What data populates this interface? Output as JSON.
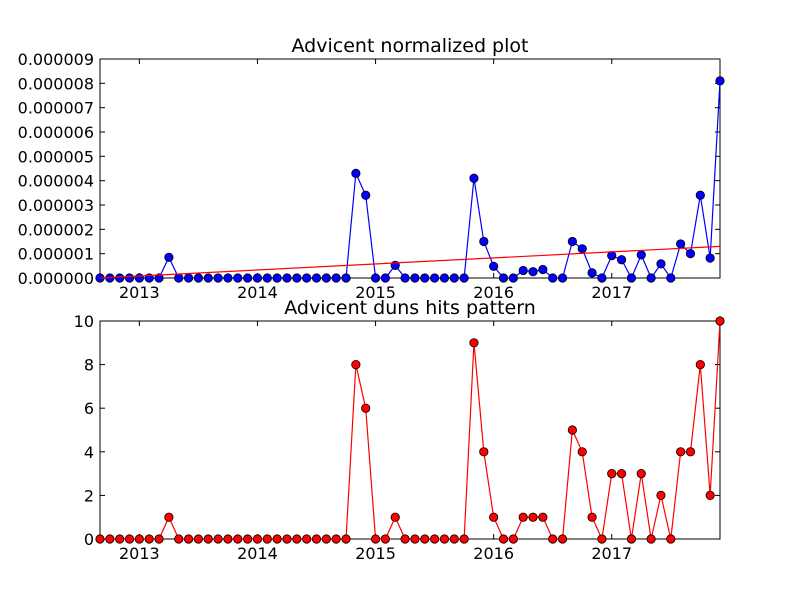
{
  "chart_data": [
    {
      "type": "line",
      "title": "Advicent normalized plot",
      "xlabel": "",
      "ylabel": "",
      "x_ticks": [
        "2013",
        "2014",
        "2015",
        "2016",
        "2017"
      ],
      "y_ticks": [
        "0.000000",
        "0.000001",
        "0.000002",
        "0.000003",
        "0.000004",
        "0.000005",
        "0.000006",
        "0.000007",
        "0.000008",
        "0.000009"
      ],
      "ylim": [
        0,
        9e-06
      ],
      "xlim": [
        "2012-09",
        "2017-12"
      ],
      "x": [
        "2012-09",
        "2012-10",
        "2012-11",
        "2012-12",
        "2013-01",
        "2013-02",
        "2013-03",
        "2013-04",
        "2013-05",
        "2013-06",
        "2013-07",
        "2013-08",
        "2013-09",
        "2013-10",
        "2013-11",
        "2013-12",
        "2014-01",
        "2014-02",
        "2014-03",
        "2014-04",
        "2014-05",
        "2014-06",
        "2014-07",
        "2014-08",
        "2014-09",
        "2014-10",
        "2014-11",
        "2014-12",
        "2015-01",
        "2015-02",
        "2015-03",
        "2015-04",
        "2015-05",
        "2015-06",
        "2015-07",
        "2015-08",
        "2015-09",
        "2015-10",
        "2015-11",
        "2015-12",
        "2016-01",
        "2016-02",
        "2016-03",
        "2016-04",
        "2016-05",
        "2016-06",
        "2016-07",
        "2016-08",
        "2016-09",
        "2016-10",
        "2016-11",
        "2016-12",
        "2017-01",
        "2017-02",
        "2017-03",
        "2017-04",
        "2017-05",
        "2017-06",
        "2017-07",
        "2017-08",
        "2017-09",
        "2017-10",
        "2017-11",
        "2017-12"
      ],
      "series": [
        {
          "values": [
            0,
            0,
            0,
            0,
            0,
            0,
            0,
            8.5e-07,
            0,
            0,
            0,
            0,
            0,
            0,
            0,
            0,
            0,
            0,
            0,
            0,
            0,
            0,
            0,
            0,
            0,
            0,
            4.3e-06,
            3.4e-06,
            0,
            0,
            5.2e-07,
            0,
            0,
            0,
            0,
            0,
            0,
            0,
            4.1e-06,
            1.5e-06,
            4.8e-07,
            0,
            0,
            3.1e-07,
            2.6e-07,
            3.5e-07,
            0,
            0,
            1.5e-06,
            1.2e-06,
            2.1e-07,
            0,
            9.2e-07,
            7.5e-07,
            0,
            9.5e-07,
            0,
            5.8e-07,
            0,
            1.4e-06,
            1e-06,
            3.4e-06,
            8.2e-07,
            8.1e-06
          ],
          "color": "#0000ff",
          "marker_color": "#0000ff"
        },
        {
          "kind": "trend",
          "start": [
            "2012-09",
            0
          ],
          "end": [
            "2017-12",
            1.3e-06
          ],
          "color": "#ff0000"
        }
      ]
    },
    {
      "type": "line",
      "title": "Advicent duns hits pattern",
      "xlabel": "",
      "ylabel": "",
      "x_ticks": [
        "2013",
        "2014",
        "2015",
        "2016",
        "2017"
      ],
      "y_ticks": [
        "0",
        "2",
        "4",
        "6",
        "8",
        "10"
      ],
      "ylim": [
        0,
        10
      ],
      "xlim": [
        "2012-09",
        "2017-12"
      ],
      "x": [
        "2012-09",
        "2012-10",
        "2012-11",
        "2012-12",
        "2013-01",
        "2013-02",
        "2013-03",
        "2013-04",
        "2013-05",
        "2013-06",
        "2013-07",
        "2013-08",
        "2013-09",
        "2013-10",
        "2013-11",
        "2013-12",
        "2014-01",
        "2014-02",
        "2014-03",
        "2014-04",
        "2014-05",
        "2014-06",
        "2014-07",
        "2014-08",
        "2014-09",
        "2014-10",
        "2014-11",
        "2014-12",
        "2015-01",
        "2015-02",
        "2015-03",
        "2015-04",
        "2015-05",
        "2015-06",
        "2015-07",
        "2015-08",
        "2015-09",
        "2015-10",
        "2015-11",
        "2015-12",
        "2016-01",
        "2016-02",
        "2016-03",
        "2016-04",
        "2016-05",
        "2016-06",
        "2016-07",
        "2016-08",
        "2016-09",
        "2016-10",
        "2016-11",
        "2016-12",
        "2017-01",
        "2017-02",
        "2017-03",
        "2017-04",
        "2017-05",
        "2017-06",
        "2017-07",
        "2017-08",
        "2017-09",
        "2017-10",
        "2017-11",
        "2017-12"
      ],
      "series": [
        {
          "values": [
            0,
            0,
            0,
            0,
            0,
            0,
            0,
            1,
            0,
            0,
            0,
            0,
            0,
            0,
            0,
            0,
            0,
            0,
            0,
            0,
            0,
            0,
            0,
            0,
            0,
            0,
            8,
            6,
            0,
            0,
            1,
            0,
            0,
            0,
            0,
            0,
            0,
            0,
            9,
            4,
            1,
            0,
            0,
            1,
            1,
            1,
            0,
            0,
            5,
            4,
            1,
            0,
            3,
            3,
            0,
            3,
            0,
            2,
            0,
            4,
            4,
            8,
            2,
            10
          ],
          "color": "#ff0000",
          "marker_color": "#ff0000"
        }
      ]
    }
  ]
}
